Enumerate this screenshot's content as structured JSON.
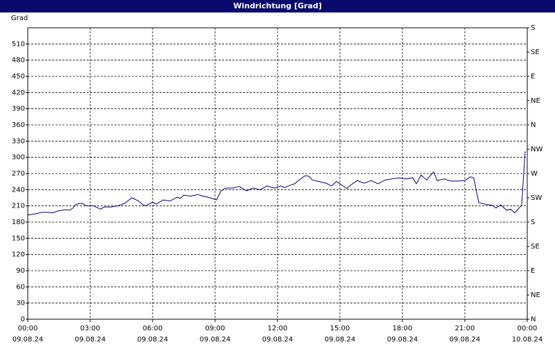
{
  "chart_data": {
    "type": "line",
    "title": "Windrichtung [Grad]",
    "y_label": "Grad",
    "x": [
      0,
      0.33,
      0.67,
      1,
      1.17,
      1.5,
      1.83,
      2,
      2.17,
      2.33,
      2.6,
      2.83,
      3.17,
      3.5,
      3.67,
      4,
      4.33,
      4.67,
      5,
      5.33,
      5.5,
      5.67,
      6,
      6.17,
      6.5,
      6.83,
      7.17,
      7.33,
      7.5,
      7.83,
      8.17,
      8.33,
      8.67,
      8.83,
      9.07,
      9.27,
      9.5,
      9.83,
      10.17,
      10.5,
      10.83,
      11.17,
      11.5,
      11.83,
      12.17,
      12.33,
      12.67,
      12.83,
      13,
      13.33,
      13.5,
      13.67,
      14,
      14.33,
      14.6,
      14.83,
      15,
      15.33,
      15.5,
      15.83,
      16.17,
      16.5,
      16.83,
      17.17,
      17.5,
      17.83,
      18.17,
      18.5,
      18.67,
      18.9,
      19.17,
      19.5,
      19.67,
      20,
      20.33,
      20.67,
      21,
      21.27,
      21.43,
      21.67,
      22,
      22.33,
      22.5,
      22.73,
      23,
      23.2,
      23.4,
      23.6,
      23.73,
      23.9
    ],
    "series": [
      {
        "color": "#000080",
        "values": [
          193,
          195,
          198,
          198,
          197,
          201,
          203,
          202,
          206,
          213,
          215,
          210,
          210,
          204,
          208,
          208,
          210,
          215,
          225,
          219,
          213,
          210,
          217,
          213,
          221,
          219,
          226,
          224,
          230,
          228,
          231,
          229,
          226,
          224,
          221,
          237,
          243,
          243,
          246,
          238,
          243,
          240,
          247,
          243,
          247,
          244,
          249,
          251,
          257,
          266,
          265,
          258,
          255,
          252,
          247,
          255,
          251,
          242,
          248,
          257,
          252,
          257,
          251,
          258,
          260,
          262,
          260,
          262,
          251,
          267,
          258,
          273,
          257,
          260,
          256,
          256,
          257,
          264,
          262,
          216,
          213,
          211,
          206,
          212,
          202,
          204,
          197,
          206,
          211,
          311
        ]
      }
    ],
    "xlim": [
      0,
      24
    ],
    "xticks": [
      {
        "value": 0,
        "label": "00:00"
      },
      {
        "value": 3,
        "label": "03:00"
      },
      {
        "value": 6,
        "label": "06:00"
      },
      {
        "value": 9,
        "label": "09:00"
      },
      {
        "value": 12,
        "label": "12:00"
      },
      {
        "value": 15,
        "label": "15:00"
      },
      {
        "value": 18,
        "label": "18:00"
      },
      {
        "value": 21,
        "label": "21:00"
      },
      {
        "value": 24,
        "label": "00:00"
      }
    ],
    "xtick_dates": [
      "09.08.24",
      "09.08.24",
      "09.08.24",
      "09.08.24",
      "09.08.24",
      "09.08.24",
      "09.08.24",
      "09.08.24",
      "10.08.24"
    ],
    "ylim": [
      0,
      540
    ],
    "yticks": [
      0,
      30,
      60,
      90,
      120,
      150,
      180,
      210,
      240,
      270,
      300,
      330,
      360,
      390,
      420,
      450,
      480,
      510
    ],
    "y2lim": [
      0,
      540
    ],
    "y2ticks": [
      {
        "value": 0,
        "label": "N"
      },
      {
        "value": 45,
        "label": "NE"
      },
      {
        "value": 90,
        "label": "E"
      },
      {
        "value": 135,
        "label": "SE"
      },
      {
        "value": 180,
        "label": "S"
      },
      {
        "value": 225,
        "label": "SW"
      },
      {
        "value": 270,
        "label": "W"
      },
      {
        "value": 315,
        "label": "NW"
      },
      {
        "value": 360,
        "label": "N"
      },
      {
        "value": 405,
        "label": "NE"
      },
      {
        "value": 450,
        "label": "E"
      },
      {
        "value": 495,
        "label": "SE"
      },
      {
        "value": 540,
        "label": "S"
      }
    ],
    "grid": true
  }
}
